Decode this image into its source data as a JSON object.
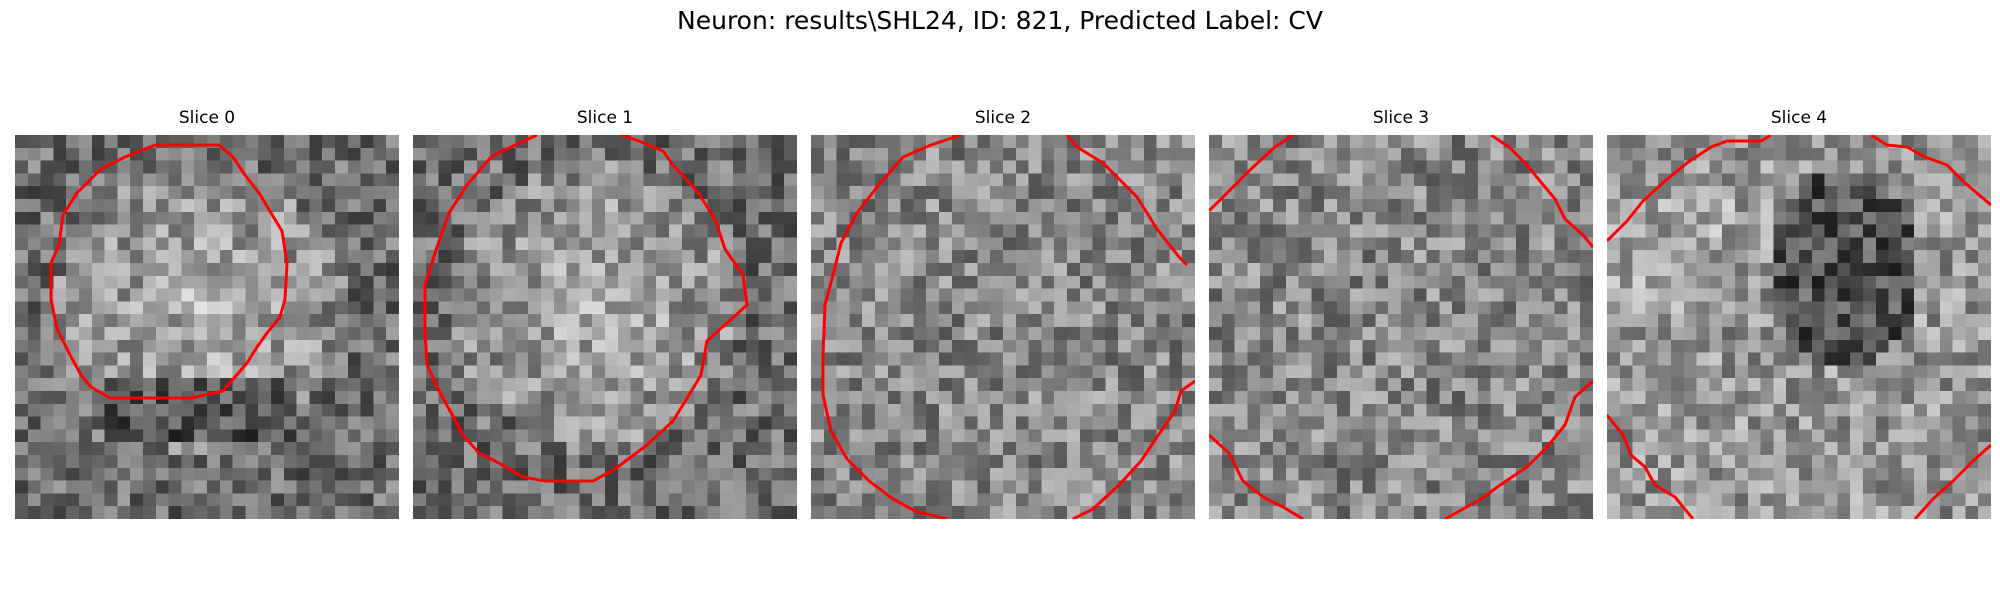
{
  "figure": {
    "title": "Neuron: results\\SHL24, ID: 821, Predicted Label: CV"
  },
  "slices": [
    {
      "label": "Slice 0",
      "seed": 11,
      "pattern": "bright-center",
      "contour": "full"
    },
    {
      "label": "Slice 1",
      "seed": 23,
      "pattern": "bright-center",
      "contour": "full-large"
    },
    {
      "label": "Slice 2",
      "seed": 37,
      "pattern": "uniform",
      "contour": "partial"
    },
    {
      "label": "Slice 3",
      "seed": 41,
      "pattern": "uniform",
      "contour": "corners"
    },
    {
      "label": "Slice 4",
      "seed": 53,
      "pattern": "dark-top",
      "contour": "corners-wide"
    }
  ],
  "colors": {
    "contour": "#ff0000",
    "background": "#ffffff"
  }
}
